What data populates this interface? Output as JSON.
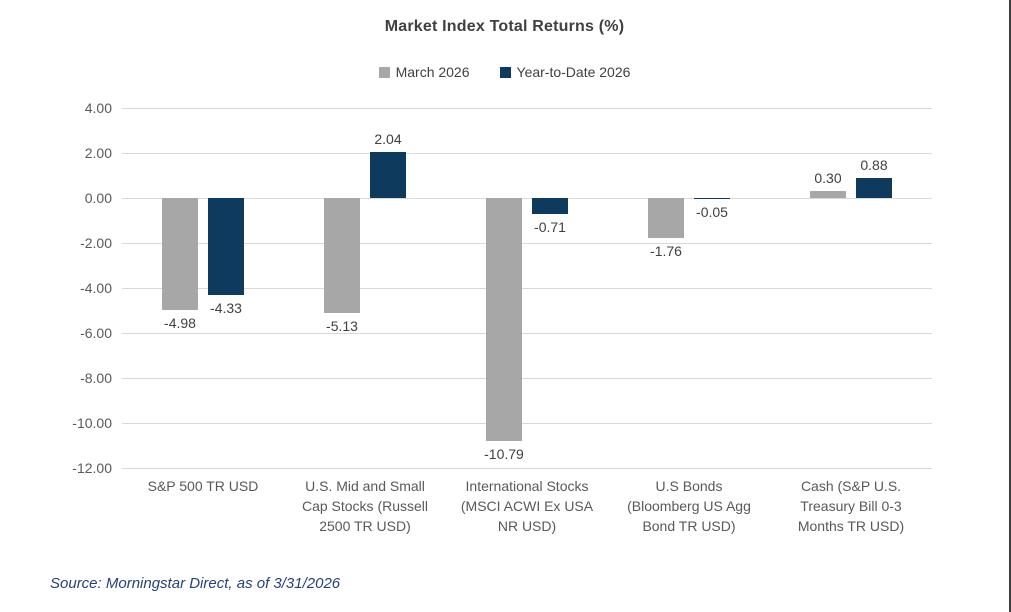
{
  "chart_data": {
    "type": "bar",
    "title": "Market Index Total Returns (%)",
    "categories": [
      "S&P 500 TR USD",
      "U.S. Mid and Small Cap Stocks (Russell 2500 TR USD)",
      "International Stocks (MSCI ACWI Ex USA NR USD)",
      "U.S Bonds (Bloomberg US Agg Bond TR USD)",
      "Cash (S&P U.S. Treasury Bill 0-3 Months TR USD)"
    ],
    "category_label_lines": [
      [
        "S&P 500 TR USD"
      ],
      [
        "U.S. Mid and Small",
        "Cap Stocks (Russell",
        "2500 TR USD)"
      ],
      [
        "International Stocks",
        "(MSCI ACWI Ex USA",
        "NR USD)"
      ],
      [
        "U.S Bonds",
        "(Bloomberg US Agg",
        "Bond TR USD)"
      ],
      [
        "Cash (S&P U.S.",
        "Treasury Bill 0-3",
        "Months TR USD)"
      ]
    ],
    "series": [
      {
        "name": "March 2026",
        "color": "#a7a7a7",
        "values": [
          -4.98,
          -5.13,
          -10.79,
          -1.76,
          0.3
        ]
      },
      {
        "name": "Year-to-Date 2026",
        "color": "#0e3a5e",
        "values": [
          -4.33,
          2.04,
          -0.71,
          -0.05,
          0.88
        ]
      }
    ],
    "ylim": [
      -12,
      4
    ],
    "ytick_step": 2,
    "ytick_labels": [
      "4.00",
      "2.00",
      "0.00",
      "-2.00",
      "-4.00",
      "-6.00",
      "-8.00",
      "-10.00",
      "-12.00"
    ],
    "value_label_decimals": 2,
    "grid": true,
    "legend_position": "top",
    "gridline_color": "#d9d9d9"
  },
  "source_note": "Source: Morningstar Direct, as of 3/31/2026"
}
